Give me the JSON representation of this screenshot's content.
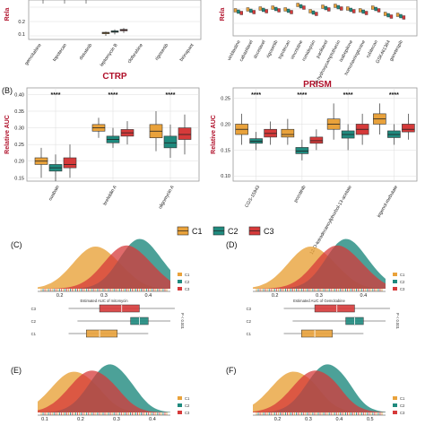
{
  "colors": {
    "C1": "#E9A23B",
    "C2": "#1F8A7E",
    "C3": "#D63A3A",
    "grid": "#dcdcdc",
    "panelBorder": "#9a9a9a",
    "title": "#b0102a"
  },
  "legend": {
    "items": [
      "C1",
      "C2",
      "C3"
    ]
  },
  "chart_data": [
    {
      "id": "top-left",
      "type": "box",
      "y_ticks": [
        "0.2",
        "0.1"
      ],
      "ylabel": "Rela",
      "categories": [
        "gemcitabine",
        "topotecan",
        "dasatinib",
        "leptomycin B",
        "clofarabine",
        "rigosertib",
        "birinapant"
      ],
      "boxes": [
        {
          "category": "leptomycin B",
          "C1": 0.12,
          "C2": 0.13,
          "C3": 0.14
        }
      ],
      "title": "CTRP"
    },
    {
      "id": "top-right",
      "type": "box",
      "ylabel": "Rela",
      "categories": [
        "vinblastine",
        "cabazitaxel",
        "docetaxel",
        "rigosertib",
        "topotecan",
        "vincristine",
        "romidepsin",
        "paclitaxel",
        "10-hydroxycamptothecin",
        "ixabepilone",
        "homoharringtonine",
        "rubitecan",
        "GSK461364",
        "ganetespib"
      ],
      "title": "PRISM"
    },
    {
      "id": "B-left",
      "type": "box",
      "panel": "(B)",
      "ylabel": "Relative AUC",
      "y_ticks": [
        "0.40",
        "0.35",
        "0.30",
        "0.25",
        "0.20",
        "0.15"
      ],
      "ylim": [
        0.14,
        0.42
      ],
      "categories": [
        "ouabain",
        "brefeldin A",
        "oligomycin A"
      ],
      "significance": [
        "****",
        "****",
        "****"
      ],
      "series": [
        {
          "name": "C1",
          "stats": [
            [
              0.15,
              0.19,
              0.2,
              0.21,
              0.24
            ],
            [
              0.27,
              0.29,
              0.3,
              0.31,
              0.33
            ],
            [
              0.23,
              0.27,
              0.29,
              0.31,
              0.35
            ]
          ]
        },
        {
          "name": "C2",
          "stats": [
            [
              0.14,
              0.17,
              0.18,
              0.19,
              0.22
            ],
            [
              0.24,
              0.255,
              0.265,
              0.275,
              0.3
            ],
            [
              0.21,
              0.24,
              0.255,
              0.275,
              0.31
            ]
          ]
        },
        {
          "name": "C3",
          "stats": [
            [
              0.15,
              0.18,
              0.19,
              0.21,
              0.25
            ],
            [
              0.25,
              0.275,
              0.285,
              0.295,
              0.32
            ],
            [
              0.22,
              0.265,
              0.28,
              0.3,
              0.34
            ]
          ]
        }
      ]
    },
    {
      "id": "B-right",
      "type": "box",
      "ylabel": "Relative AUC",
      "y_ticks": [
        "0.25",
        "0.20",
        "0.15",
        "0.10"
      ],
      "ylim": [
        0.09,
        0.27
      ],
      "categories": [
        "CGS-15943",
        "pozotinib",
        "12-O-tetradecanoylphorbol-13-acetate",
        "ingenol-mebutate"
      ],
      "significance": [
        "****",
        "****",
        "****",
        "****"
      ],
      "series": [
        {
          "name": "C1",
          "stats": [
            [
              0.16,
              0.18,
              0.19,
              0.2,
              0.22
            ],
            [
              0.16,
              0.175,
              0.18,
              0.19,
              0.21
            ],
            [
              0.17,
              0.19,
              0.2,
              0.21,
              0.24
            ],
            [
              0.18,
              0.2,
              0.21,
              0.22,
              0.24
            ]
          ]
        },
        {
          "name": "C2",
          "stats": [
            [
              0.15,
              0.163,
              0.167,
              0.172,
              0.185
            ],
            [
              0.13,
              0.143,
              0.148,
              0.155,
              0.17
            ],
            [
              0.15,
              0.173,
              0.18,
              0.187,
              0.2
            ],
            [
              0.16,
              0.174,
              0.18,
              0.187,
              0.2
            ]
          ]
        },
        {
          "name": "C3",
          "stats": [
            [
              0.16,
              0.175,
              0.182,
              0.19,
              0.205
            ],
            [
              0.15,
              0.163,
              0.168,
              0.175,
              0.19
            ],
            [
              0.16,
              0.18,
              0.19,
              0.2,
              0.22
            ],
            [
              0.17,
              0.185,
              0.19,
              0.2,
              0.22
            ]
          ]
        }
      ]
    },
    {
      "id": "C",
      "type": "density",
      "panel": "(C)",
      "x_ticks": [
        "0.2",
        "0.3",
        "0.4"
      ],
      "xlabel": "Estimated AUC of mitomycin",
      "pvalue": "P < 0.001",
      "series": [
        {
          "name": "C1",
          "peak": 0.28
        },
        {
          "name": "C2",
          "peak": 0.38
        },
        {
          "name": "C3",
          "peak": 0.35
        }
      ]
    },
    {
      "id": "D",
      "type": "density",
      "panel": "(D)",
      "x_ticks": [
        "0.2",
        "0.3",
        "0.4"
      ],
      "xlabel": "Estimated AUC of Gemcitabine",
      "pvalue": "P < 0.001",
      "series": [
        {
          "name": "C1",
          "peak": 0.28
        },
        {
          "name": "C2",
          "peak": 0.36
        },
        {
          "name": "C3",
          "peak": 0.34
        }
      ]
    },
    {
      "id": "E",
      "type": "density",
      "panel": "(E)",
      "x_ticks": [
        "0.1",
        "0.2",
        "0.3",
        "0.4"
      ],
      "series": [
        {
          "name": "C1",
          "peak": 0.18
        },
        {
          "name": "C2",
          "peak": 0.28
        },
        {
          "name": "C3",
          "peak": 0.23
        }
      ]
    },
    {
      "id": "F",
      "type": "density",
      "panel": "(F)",
      "x_ticks": [
        "0.2",
        "0.3",
        "0.4",
        "0.5"
      ],
      "series": [
        {
          "name": "C1",
          "peak": 0.25
        },
        {
          "name": "C2",
          "peak": 0.36
        },
        {
          "name": "C3",
          "peak": 0.32
        }
      ]
    }
  ],
  "box_rows": {
    "C": {
      "rows": [
        "C3",
        "C2",
        "C1"
      ]
    },
    "D": {
      "rows": [
        "C3",
        "C2",
        "C1"
      ]
    }
  }
}
